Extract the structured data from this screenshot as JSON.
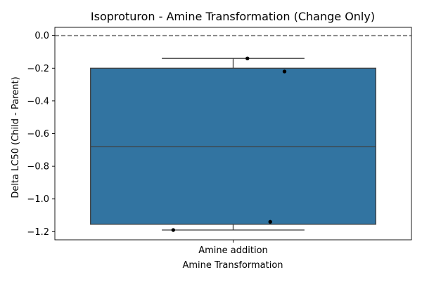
{
  "chart_data": {
    "type": "box",
    "title": "Isoproturon - Amine Transformation (Change Only)",
    "xlabel": "Amine Transformation",
    "ylabel": "Delta LC50 (Child - Parent)",
    "categories": [
      "Amine addition"
    ],
    "ylim": [
      -1.25,
      0.05
    ],
    "yticks": [
      0.0,
      -0.2,
      -0.4,
      -0.6,
      -0.8,
      -1.0,
      -1.2
    ],
    "ytick_labels": [
      "0.0",
      "−0.2",
      "−0.4",
      "−0.6",
      "−0.8",
      "−1.0",
      "−1.2"
    ],
    "reference_line": {
      "y": 0.0,
      "style": "dashed"
    },
    "grid": false,
    "legend": "none",
    "box": {
      "category": "Amine addition",
      "whisker_low": -1.19,
      "q1": -1.155,
      "median": -0.68,
      "q3": -0.2,
      "whisker_high": -0.14
    },
    "points": [
      {
        "category": "Amine addition",
        "jitter": 0.05,
        "y": -0.14
      },
      {
        "category": "Amine addition",
        "jitter": 0.18,
        "y": -0.22
      },
      {
        "category": "Amine addition",
        "jitter": 0.13,
        "y": -1.14
      },
      {
        "category": "Amine addition",
        "jitter": -0.21,
        "y": -1.19
      }
    ],
    "colors": {
      "box_fill": "#3274a1",
      "box_edge": "#3f3f3f",
      "point": "#000000",
      "reference_line": "#7f7f7f",
      "axes": "#000000"
    }
  }
}
